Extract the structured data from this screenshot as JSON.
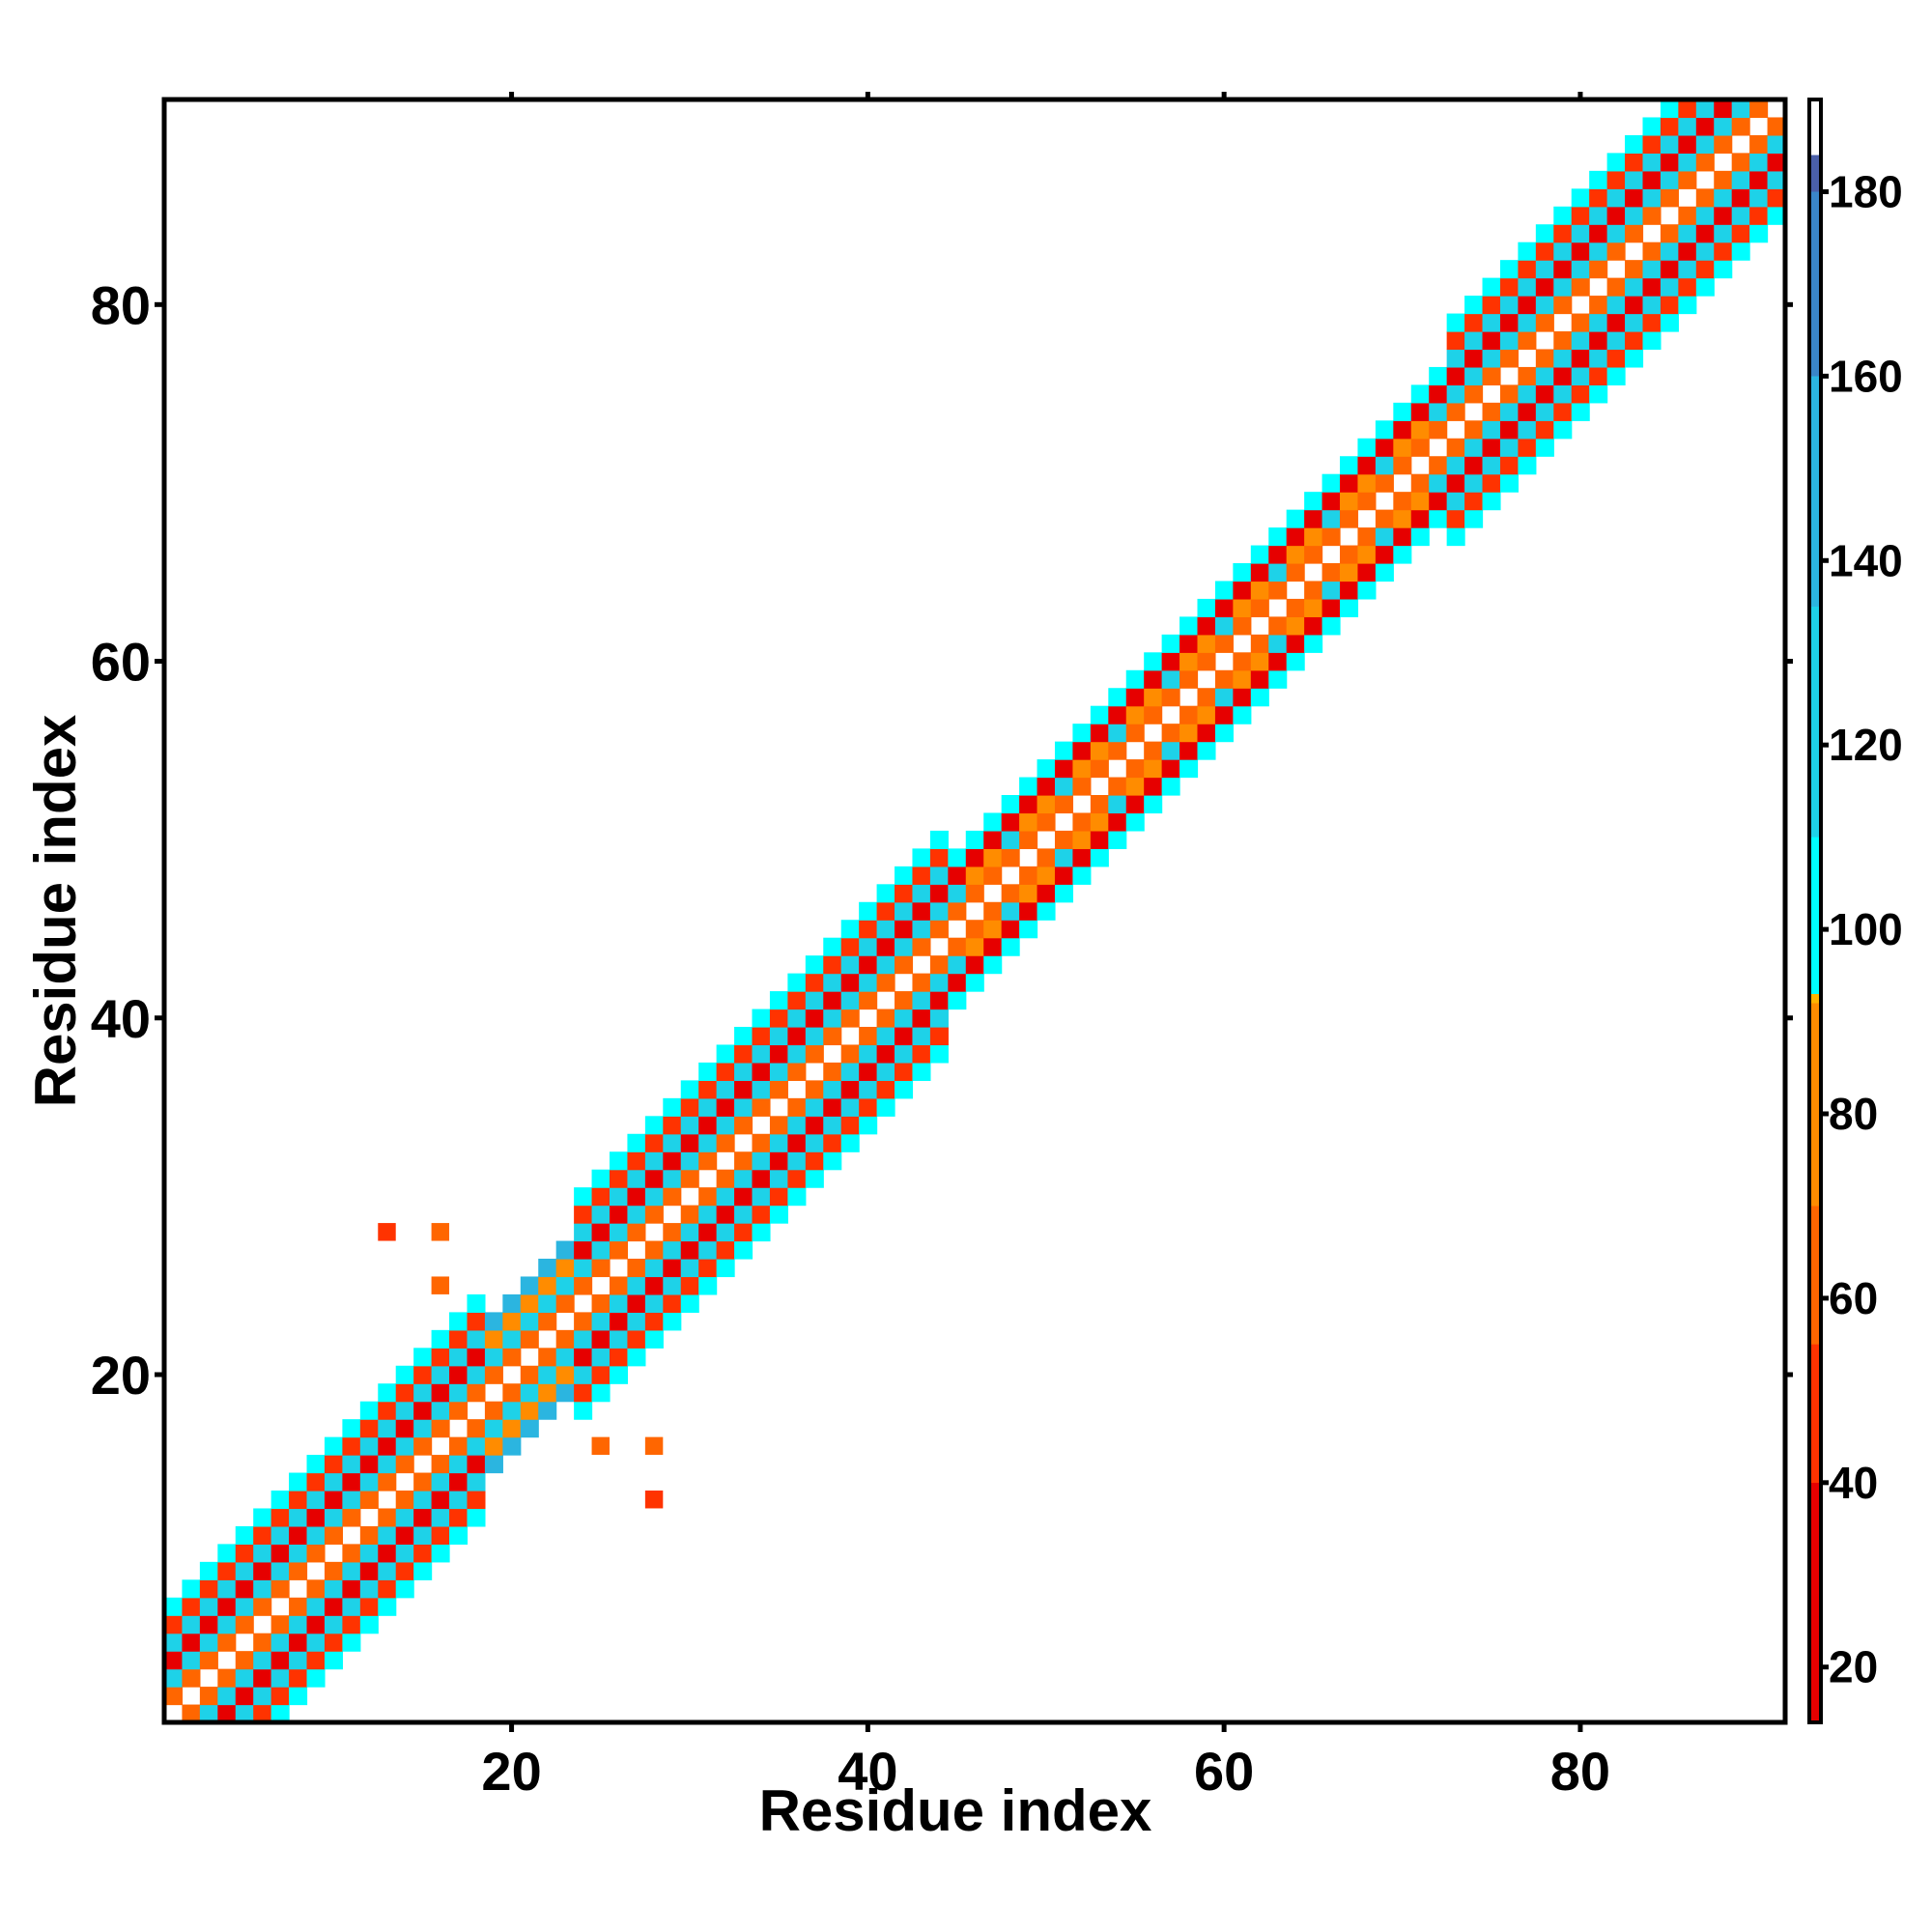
{
  "chart_data": {
    "type": "heatmap",
    "xlabel": "Residue index",
    "ylabel": "Residue index",
    "xlim": [
      0.5,
      91.5
    ],
    "ylim": [
      0.5,
      91.5
    ],
    "x_ticks": [
      20,
      40,
      60,
      80
    ],
    "y_ticks": [
      20,
      40,
      60,
      80
    ],
    "colorbar": {
      "ticks": [
        20,
        40,
        60,
        80,
        100,
        120,
        140,
        160,
        180
      ],
      "range": [
        14,
        190
      ],
      "stops": [
        {
          "value": 14,
          "color": "#e60000"
        },
        {
          "value": 40,
          "color": "#ff3300"
        },
        {
          "value": 55,
          "color": "#ff6600"
        },
        {
          "value": 70,
          "color": "#ff8c00"
        },
        {
          "value": 92,
          "color": "#ffb300"
        },
        {
          "value": 93,
          "color": "#00ffff"
        },
        {
          "value": 110,
          "color": "#1ed2e8"
        },
        {
          "value": 135,
          "color": "#2bb5e0"
        },
        {
          "value": 160,
          "color": "#3a86c8"
        },
        {
          "value": 180,
          "color": "#4a5fa8"
        },
        {
          "value": 184,
          "color": "#ffffff"
        },
        {
          "value": 190,
          "color": "#ffffff"
        }
      ]
    },
    "band_rule": "value at (i,j) for |i-j| in 1..6: red ~25 (odd |i-j| = 3,5), orange-red ~55 (|i-j| = 1), cyan ~105-125 (|i-j| = 2,4,6); diagonal |i-j|=0 is empty (white)",
    "band_segments": [
      {
        "from": 1,
        "to": 18,
        "width": 6,
        "pattern": "alpha"
      },
      {
        "from": 19,
        "to": 23,
        "width": 4,
        "pattern": "mixed"
      },
      {
        "from": 24,
        "to": 44,
        "width": 7,
        "pattern": "alpha"
      },
      {
        "from": 45,
        "to": 62,
        "width": 4,
        "pattern": "beta"
      },
      {
        "from": 63,
        "to": 72,
        "width": 4,
        "pattern": "beta"
      },
      {
        "from": 73,
        "to": 91,
        "width": 6,
        "pattern": "alpha"
      }
    ],
    "outliers": [
      {
        "x": 13,
        "y": 28,
        "value": 40
      },
      {
        "x": 16,
        "y": 28,
        "value": 60
      },
      {
        "x": 16,
        "y": 25,
        "value": 60
      },
      {
        "x": 25,
        "y": 16,
        "value": 60
      },
      {
        "x": 28,
        "y": 16,
        "value": 60
      },
      {
        "x": 28,
        "y": 13,
        "value": 40
      }
    ]
  }
}
